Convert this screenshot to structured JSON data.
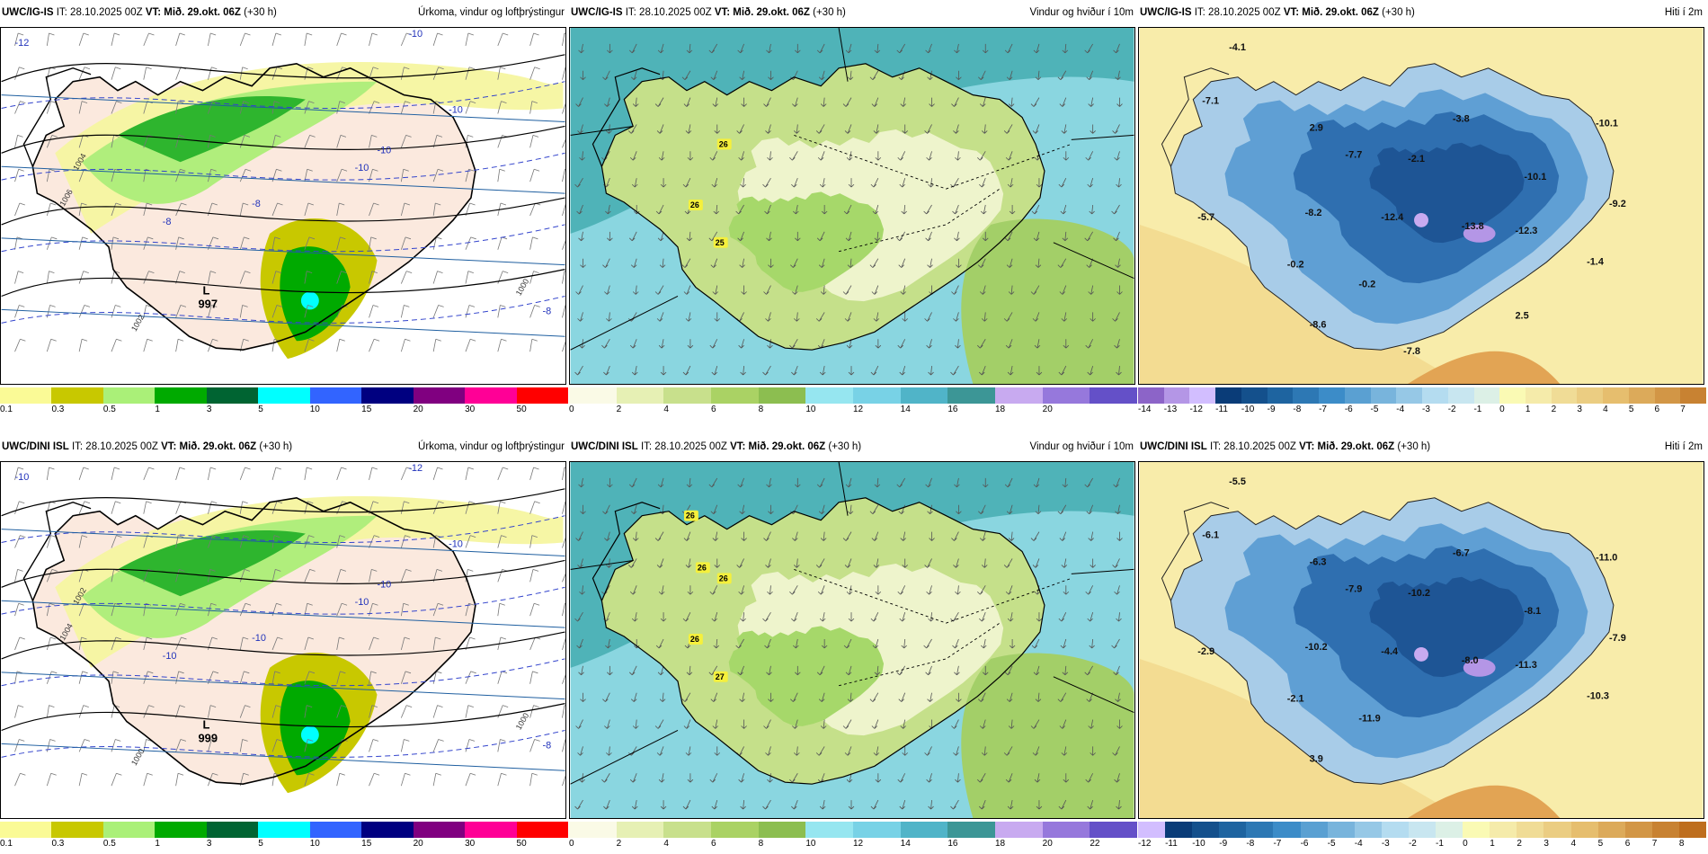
{
  "panels": [
    {
      "id": "p1",
      "model": "UWC/IG-IS",
      "it_label": "IT:",
      "it": "28.10.2025 00Z",
      "vt_label": "VT:",
      "vt": "Mið. 29.okt. 06Z",
      "offset": "(+30 h)",
      "title": "Úrkoma, vindur og loftþrýstingur",
      "type": "precip",
      "ticks": [
        "0.1",
        "0.3",
        "0.5",
        "1",
        "3",
        "5",
        "10",
        "15",
        "20",
        "30",
        "50"
      ],
      "colors": [
        "#fafa96",
        "#c8c800",
        "#aaf078",
        "#00aa00",
        "#006432",
        "#00ffff",
        "#3264ff",
        "#000080",
        "#800080",
        "#ff0096",
        "#ff0000"
      ],
      "pressure": {
        "label": "L",
        "value": "997"
      },
      "blue_labels": [
        "-12",
        "-10",
        "-10",
        "-10",
        "-10",
        "-8",
        "-8",
        "-8"
      ],
      "isobar_labels": [
        "1006",
        "1004",
        "1002",
        "1000"
      ]
    },
    {
      "id": "p2",
      "model": "UWC/IG-IS",
      "it_label": "IT:",
      "it": "28.10.2025 00Z",
      "vt_label": "VT:",
      "vt": "Mið. 29.okt. 06Z",
      "offset": "(+30 h)",
      "title": "Vindur og hviður í 10m",
      "type": "wind",
      "ticks": [
        "0",
        "2",
        "4",
        "6",
        "8",
        "10",
        "12",
        "14",
        "16",
        "18",
        "20"
      ],
      "colors": [
        "#fafae6",
        "#e6f0b4",
        "#c8e08c",
        "#aad264",
        "#8cbe50",
        "#96e6f0",
        "#78d2e6",
        "#50b4c8",
        "#3c9696",
        "#c8aaf0",
        "#9678dc",
        "#6450c8"
      ],
      "gusts": [
        "26",
        "26",
        "25"
      ]
    },
    {
      "id": "p3",
      "model": "UWC/IG-IS",
      "it_label": "IT:",
      "it": "28.10.2025 00Z",
      "vt_label": "VT:",
      "vt": "Mið. 29.okt. 06Z",
      "offset": "(+30 h)",
      "title": "Hiti í 2m",
      "type": "temp",
      "ticks": [
        "-14",
        "-13",
        "-12",
        "-11",
        "-10",
        "-9",
        "-8",
        "-7",
        "-6",
        "-5",
        "-4",
        "-3",
        "-2",
        "-1",
        "0",
        "1",
        "2",
        "3",
        "4",
        "5",
        "6",
        "7"
      ],
      "colors": [
        "#8c64c8",
        "#b496e6",
        "#d2beff",
        "#0a3c78",
        "#14508c",
        "#1e64a0",
        "#2d78b4",
        "#3c8cc8",
        "#5aa0d2",
        "#78b4dc",
        "#96c8e6",
        "#b4dcf0",
        "#c8e6f0",
        "#dcf0e6",
        "#fafab4",
        "#f5ebaa",
        "#f0dc96",
        "#ebcd82",
        "#e6be6e",
        "#dcaa5a",
        "#d29646",
        "#c88232"
      ],
      "temps": [
        "-4.1",
        "-7.1",
        "2.9",
        "-3.8",
        "-10.1",
        "-7.7",
        "-2.1",
        "-10.1",
        "-5.7",
        "-8.2",
        "-12.4",
        "-13.8",
        "-12.3",
        "-9.2",
        "-0.2",
        "-0.2",
        "-1.4",
        "-8.6",
        "2.5",
        "-7.8"
      ]
    },
    {
      "id": "p4",
      "model": "UWC/DINI ISL",
      "it_label": "IT:",
      "it": "28.10.2025 00Z",
      "vt_label": "VT:",
      "vt": "Mið. 29.okt. 06Z",
      "offset": "(+30 h)",
      "title": "Úrkoma, vindur og loftþrýstingur",
      "type": "precip",
      "ticks": [
        "0.1",
        "0.3",
        "0.5",
        "1",
        "3",
        "5",
        "10",
        "15",
        "20",
        "30",
        "50"
      ],
      "colors": [
        "#fafa96",
        "#c8c800",
        "#aaf078",
        "#00aa00",
        "#006432",
        "#00ffff",
        "#3264ff",
        "#000080",
        "#800080",
        "#ff0096",
        "#ff0000"
      ],
      "pressure": {
        "label": "L",
        "value": "999"
      },
      "blue_labels": [
        "-10",
        "-12",
        "-10",
        "-10",
        "-10",
        "-10",
        "-10",
        "-8"
      ],
      "isobar_labels": [
        "1004",
        "1002",
        "1000",
        "1000"
      ]
    },
    {
      "id": "p5",
      "model": "UWC/DINI ISL",
      "it_label": "IT:",
      "it": "28.10.2025 00Z",
      "vt_label": "VT:",
      "vt": "Mið. 29.okt. 06Z",
      "offset": "(+30 h)",
      "title": "Vindur og hviður í 10m",
      "type": "wind",
      "ticks": [
        "0",
        "2",
        "4",
        "6",
        "8",
        "10",
        "12",
        "14",
        "16",
        "18",
        "20",
        "22"
      ],
      "colors": [
        "#fafae6",
        "#e6f0b4",
        "#c8e08c",
        "#aad264",
        "#8cbe50",
        "#96e6f0",
        "#78d2e6",
        "#50b4c8",
        "#3c9696",
        "#c8aaf0",
        "#9678dc",
        "#6450c8"
      ],
      "gusts": [
        "26",
        "26",
        "27",
        "26",
        "26"
      ]
    },
    {
      "id": "p6",
      "model": "UWC/DINI ISL",
      "it_label": "IT:",
      "it": "28.10.2025 00Z",
      "vt_label": "VT:",
      "vt": "Mið. 29.okt. 06Z",
      "offset": "(+30 h)",
      "title": "Hiti í 2m",
      "type": "temp",
      "ticks": [
        "-12",
        "-11",
        "-10",
        "-9",
        "-8",
        "-7",
        "-6",
        "-5",
        "-4",
        "-3",
        "-2",
        "-1",
        "0",
        "1",
        "2",
        "3",
        "4",
        "5",
        "6",
        "7",
        "8"
      ],
      "colors": [
        "#d2beff",
        "#0a3c78",
        "#14508c",
        "#1e64a0",
        "#2d78b4",
        "#3c8cc8",
        "#5aa0d2",
        "#78b4dc",
        "#96c8e6",
        "#b4dcf0",
        "#c8e6f0",
        "#dcf0e6",
        "#fafab4",
        "#f5ebaa",
        "#f0dc96",
        "#ebcd82",
        "#e6be6e",
        "#dcaa5a",
        "#d29646",
        "#c88232",
        "#be6e1e"
      ],
      "temps": [
        "-5.5",
        "-6.1",
        "-6.3",
        "-6.7",
        "-11.0",
        "-7.9",
        "-10.2",
        "-8.1",
        "-2.9",
        "-10.2",
        "-4.4",
        "-8.0",
        "-11.3",
        "-7.9",
        "-2.1",
        "-11.9",
        "-10.3",
        "3.9"
      ]
    }
  ]
}
